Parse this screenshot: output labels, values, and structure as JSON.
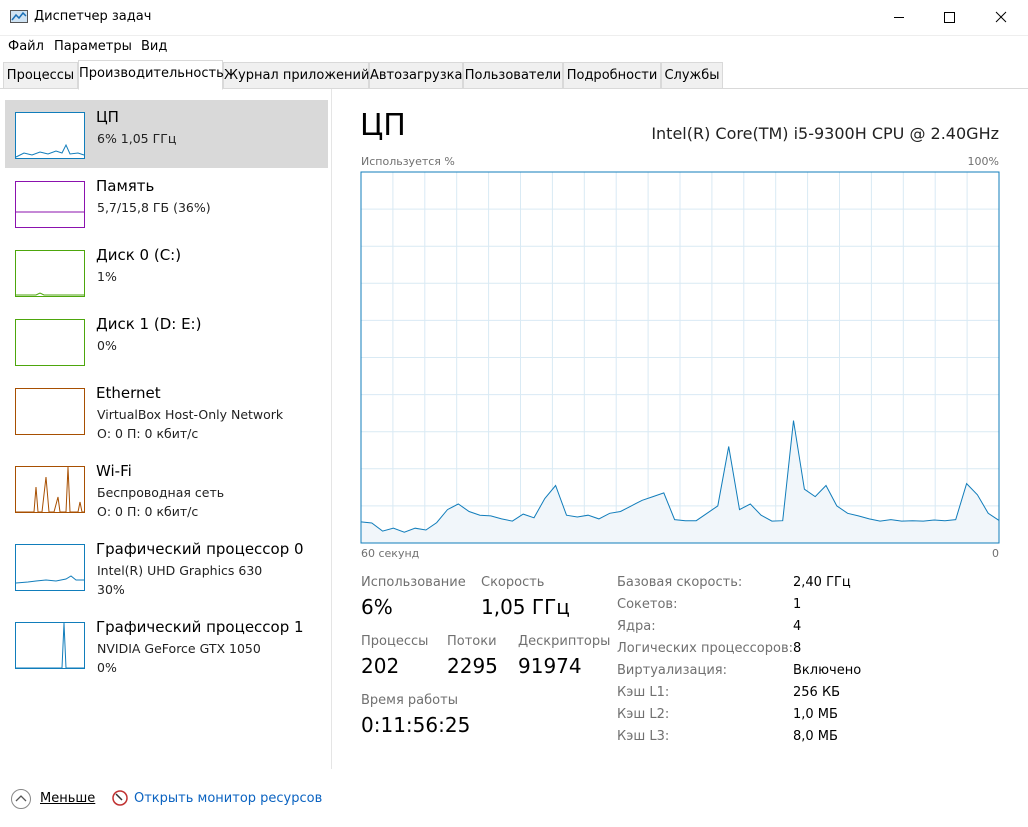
{
  "window": {
    "title": "Диспетчер задач"
  },
  "menu": [
    "Файл",
    "Параметры",
    "Вид"
  ],
  "tabs": [
    "Процессы",
    "Производительность",
    "Журнал приложений",
    "Автозагрузка",
    "Пользователи",
    "Подробности",
    "Службы"
  ],
  "sidebar": [
    {
      "name": "ЦП",
      "lines": [
        "6%  1,05 ГГц"
      ]
    },
    {
      "name": "Память",
      "lines": [
        "5,7/15,8 ГБ (36%)"
      ]
    },
    {
      "name": "Диск 0 (C:)",
      "lines": [
        "1%"
      ]
    },
    {
      "name": "Диск 1 (D: E:)",
      "lines": [
        "0%"
      ]
    },
    {
      "name": "Ethernet",
      "lines": [
        "VirtualBox Host-Only Network",
        "О: 0  П: 0 кбит/с"
      ]
    },
    {
      "name": "Wi-Fi",
      "lines": [
        "Беспроводная сеть",
        "О: 0  П: 0 кбит/с"
      ]
    },
    {
      "name": "Графический процессор 0",
      "lines": [
        "Intel(R) UHD Graphics 630",
        "30%"
      ]
    },
    {
      "name": "Графический процессор 1",
      "lines": [
        "NVIDIA GeForce GTX 1050",
        "0%"
      ]
    }
  ],
  "main": {
    "title": "ЦП",
    "cpu_name": "Intel(R) Core(TM) i5-9300H CPU @ 2.40GHz",
    "graph": {
      "y_label": "Используется %",
      "y_max_label": "100%",
      "x_left_label": "60 секунд",
      "x_right_label": "0",
      "ylim": [
        0,
        100
      ],
      "values": [
        5.7,
        5.4,
        3.2,
        4,
        2.9,
        4,
        3.5,
        5.5,
        9,
        10.5,
        8.5,
        7.5,
        7.3,
        6.5,
        5.9,
        7.8,
        6.8,
        12,
        15.5,
        7.5,
        7,
        7.5,
        6.5,
        8,
        8.5,
        10,
        11.5,
        12.5,
        13.5,
        6.3,
        6,
        6,
        8,
        10,
        26,
        9,
        10.5,
        7.5,
        5.9,
        6,
        33,
        14.5,
        12.5,
        15.5,
        10,
        8,
        7.3,
        6.5,
        5.9,
        6.3,
        5.9,
        6,
        5.9,
        6.2,
        6,
        6.3,
        16,
        13,
        8,
        6.1
      ]
    },
    "stats": [
      {
        "label": "Использование",
        "value": "6%"
      },
      {
        "label": "Скорость",
        "value": "1,05 ГГц"
      },
      {
        "label": "Процессы",
        "value": "202"
      },
      {
        "label": "Потоки",
        "value": "2295"
      },
      {
        "label": "Дескрипторы",
        "value": "91974"
      },
      {
        "label": "Время работы",
        "value": "0:11:56:25"
      }
    ],
    "details": [
      [
        "Базовая скорость:",
        "2,40 ГГц"
      ],
      [
        "Сокетов:",
        "1"
      ],
      [
        "Ядра:",
        "4"
      ],
      [
        "Логических процессоров:",
        "8"
      ],
      [
        "Виртуализация:",
        "Включено"
      ],
      [
        "Кэш L1:",
        "256 КБ"
      ],
      [
        "Кэш L2:",
        "1,0 МБ"
      ],
      [
        "Кэш L3:",
        "8,0 МБ"
      ]
    ]
  },
  "footer": {
    "less": "Меньше",
    "monitor": "Открыть монитор ресурсов"
  }
}
